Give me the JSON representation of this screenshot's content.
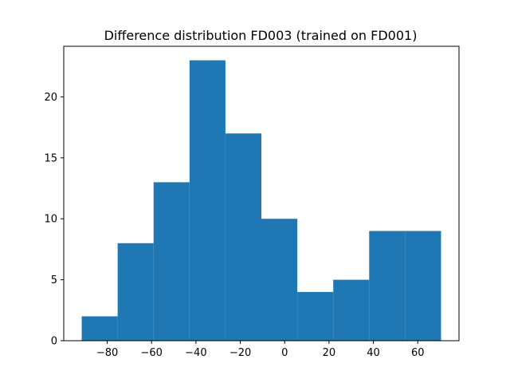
{
  "chart_data": {
    "type": "bar",
    "title": "Difference distribution FD003 (trained on FD001)",
    "xlabel": "",
    "ylabel": "",
    "bin_edges": [
      -91.5,
      -75.3,
      -59.1,
      -42.9,
      -26.7,
      -10.5,
      5.7,
      21.9,
      38.1,
      54.3,
      70.5
    ],
    "values": [
      2,
      8,
      13,
      23,
      17,
      10,
      4,
      5,
      9,
      9
    ],
    "xlim": [
      -99.6,
      78.6
    ],
    "ylim": [
      0,
      24.15
    ],
    "xticks": [
      -80,
      -60,
      -40,
      -20,
      0,
      20,
      40,
      60
    ],
    "xtick_labels": [
      "−80",
      "−60",
      "−40",
      "−20",
      "0",
      "20",
      "40",
      "60"
    ],
    "yticks": [
      0,
      5,
      10,
      15,
      20
    ],
    "ytick_labels": [
      "0",
      "5",
      "10",
      "15",
      "20"
    ],
    "bar_color": "#1f77b4",
    "grid": false,
    "legend": "none"
  }
}
